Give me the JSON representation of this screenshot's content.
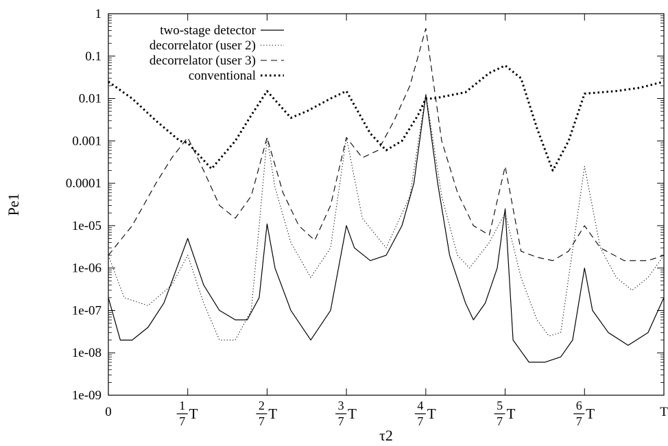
{
  "chart_data": {
    "type": "line",
    "title": "",
    "xlabel": "τ2",
    "ylabel": "Pe1",
    "y_scale": "log",
    "ylim": [
      1e-09,
      1
    ],
    "xlim": [
      0,
      7
    ],
    "x_unit_note": "x values in units of T/7",
    "y_tick_labels": [
      "1e-09",
      "1e-08",
      "1e-07",
      "1e-06",
      "1e-05",
      "0.0001",
      "0.001",
      "0.01",
      "0.1",
      "1"
    ],
    "x_ticks": [
      {
        "value": 0,
        "label": "0"
      },
      {
        "value": 1,
        "num": "1",
        "den": "7",
        "suffix": "T"
      },
      {
        "value": 2,
        "num": "2",
        "den": "7",
        "suffix": "T"
      },
      {
        "value": 3,
        "num": "3",
        "den": "7",
        "suffix": "T"
      },
      {
        "value": 4,
        "num": "4",
        "den": "7",
        "suffix": "T"
      },
      {
        "value": 5,
        "num": "5",
        "den": "7",
        "suffix": "T"
      },
      {
        "value": 6,
        "num": "6",
        "den": "7",
        "suffix": "T"
      },
      {
        "value": 7,
        "label": "T"
      }
    ],
    "grid": false,
    "legend_position": "top-left",
    "series": [
      {
        "name": "two-stage detector",
        "style": "solid",
        "color": "#000000",
        "x": [
          0,
          0.15,
          0.3,
          0.5,
          0.7,
          1.0,
          1.2,
          1.4,
          1.6,
          1.75,
          1.9,
          2.0,
          2.1,
          2.3,
          2.55,
          2.8,
          3.0,
          3.1,
          3.3,
          3.5,
          3.7,
          3.85,
          4.0,
          4.15,
          4.3,
          4.5,
          4.6,
          4.75,
          4.9,
          5.0,
          5.1,
          5.3,
          5.5,
          5.7,
          5.85,
          6.0,
          6.1,
          6.3,
          6.55,
          6.8,
          7.0
        ],
        "y": [
          2e-07,
          2e-08,
          2e-08,
          4e-08,
          1.5e-07,
          5e-06,
          4e-07,
          1e-07,
          6e-08,
          6e-08,
          2e-07,
          1.1e-05,
          1e-06,
          1e-07,
          2e-08,
          1e-07,
          1e-05,
          3e-06,
          1.5e-06,
          2e-06,
          1e-05,
          0.0001,
          0.012,
          0.0001,
          2e-06,
          1.5e-07,
          6e-08,
          1.5e-07,
          1e-06,
          2.5e-05,
          2e-08,
          6e-09,
          6e-09,
          8e-09,
          2e-08,
          1e-06,
          1e-07,
          3e-08,
          1.5e-08,
          3e-08,
          2e-07
        ]
      },
      {
        "name": "decorrelator (user 2)",
        "style": "dotted-fine",
        "color": "#000000",
        "x": [
          0,
          0.2,
          0.5,
          0.8,
          1.0,
          1.2,
          1.4,
          1.6,
          1.8,
          1.9,
          2.0,
          2.1,
          2.3,
          2.55,
          2.8,
          3.0,
          3.2,
          3.5,
          3.8,
          4.0,
          4.2,
          4.4,
          4.55,
          4.8,
          5.0,
          5.2,
          5.4,
          5.55,
          5.7,
          6.0,
          6.2,
          6.4,
          6.6,
          6.8,
          7.0
        ],
        "y": [
          2e-06,
          2e-07,
          1.3e-07,
          4e-07,
          2e-06,
          1.5e-07,
          2e-08,
          2e-08,
          1e-07,
          1e-05,
          0.0012,
          8e-05,
          4e-06,
          6e-07,
          3e-06,
          0.0012,
          1.5e-05,
          3e-06,
          5e-05,
          0.013,
          5e-05,
          2e-06,
          1e-06,
          4e-06,
          2e-05,
          6e-07,
          6e-08,
          2.5e-08,
          3e-08,
          0.00025,
          3e-06,
          6e-07,
          3e-07,
          6e-07,
          2e-06
        ]
      },
      {
        "name": "decorrelator (user 3)",
        "style": "dashed",
        "color": "#000000",
        "x": [
          0,
          0.3,
          0.6,
          0.8,
          1.0,
          1.2,
          1.4,
          1.6,
          1.8,
          2.0,
          2.2,
          2.4,
          2.6,
          2.8,
          3.0,
          3.2,
          3.4,
          3.6,
          3.8,
          4.0,
          4.2,
          4.4,
          4.6,
          4.8,
          5.0,
          5.2,
          5.4,
          5.6,
          5.8,
          6.0,
          6.2,
          6.5,
          6.8,
          7.0
        ],
        "y": [
          2e-06,
          1e-05,
          0.0001,
          0.0004,
          0.0012,
          0.0002,
          3e-05,
          1.5e-05,
          5e-05,
          0.0012,
          6e-05,
          1e-05,
          4.5e-06,
          3e-05,
          0.0012,
          0.0004,
          0.0006,
          0.003,
          0.02,
          0.45,
          0.001,
          6e-05,
          1e-05,
          6e-06,
          0.00025,
          2.5e-06,
          1.8e-06,
          1.5e-06,
          2.5e-06,
          1e-05,
          3e-06,
          1.5e-06,
          1.5e-06,
          2e-06
        ]
      },
      {
        "name": "conventional",
        "style": "dotted-bold",
        "color": "#000000",
        "x": [
          0,
          0.3,
          0.6,
          0.9,
          1.0,
          1.3,
          1.6,
          1.8,
          2.0,
          2.3,
          2.5,
          2.8,
          3.0,
          3.3,
          3.5,
          3.7,
          3.9,
          4.0,
          4.1,
          4.5,
          4.8,
          5.0,
          5.2,
          5.4,
          5.6,
          5.8,
          6.0,
          6.4,
          6.7,
          7.0
        ],
        "y": [
          0.025,
          0.01,
          0.003,
          0.001,
          0.0009,
          0.00022,
          0.001,
          0.004,
          0.015,
          0.0035,
          0.005,
          0.01,
          0.015,
          0.0015,
          0.0006,
          0.001,
          0.004,
          0.01,
          0.01,
          0.014,
          0.04,
          0.06,
          0.03,
          0.002,
          0.0002,
          0.001,
          0.013,
          0.015,
          0.018,
          0.025
        ]
      }
    ]
  }
}
